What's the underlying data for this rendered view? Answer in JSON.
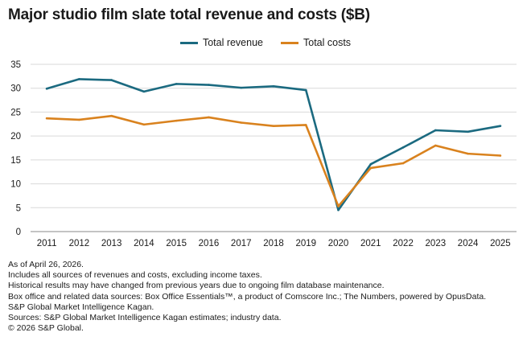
{
  "title": "Major studio film slate total revenue and costs ($B)",
  "chart_data": {
    "type": "line",
    "title": "Major studio film slate total revenue and costs ($B)",
    "categories": [
      "2011",
      "2012",
      "2013",
      "2014",
      "2015",
      "2016",
      "2017",
      "2018",
      "2019",
      "2020",
      "2021",
      "2022",
      "2023",
      "2024",
      "2025"
    ],
    "series": [
      {
        "name": "Total revenue",
        "color": "#1b6a80",
        "values": [
          29.9,
          31.9,
          31.7,
          29.3,
          30.9,
          30.7,
          30.1,
          30.4,
          29.6,
          4.5,
          14.1,
          17.6,
          21.2,
          20.9,
          22.1
        ]
      },
      {
        "name": "Total costs",
        "color": "#d9821e",
        "values": [
          23.7,
          23.4,
          24.2,
          22.4,
          23.2,
          23.9,
          22.8,
          22.1,
          22.3,
          5.3,
          13.3,
          14.3,
          18.0,
          16.3,
          15.9
        ]
      }
    ],
    "yticks": [
      "0",
      "5",
      "10",
      "15",
      "20",
      "25",
      "30",
      "35"
    ],
    "ylim": [
      0,
      35
    ],
    "grid": true,
    "legend": "top-center"
  },
  "notes": [
    "As of April 26, 2026.",
    "Includes all sources of revenues and costs, excluding income taxes.",
    "Historical results may have changed from previous years due to ongoing film database maintenance.",
    "Box office and related data sources: Box Office Essentials™, a product of Comscore Inc.; The Numbers, powered by OpusData.",
    "S&P Global Market Intelligence Kagan.",
    "Sources: S&P Global Market Intelligence Kagan estimates; industry data.",
    "© 2026 S&P Global."
  ]
}
